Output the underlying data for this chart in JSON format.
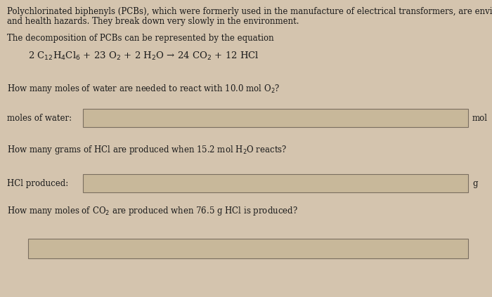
{
  "bg_color": "#d4c4ae",
  "text_color": "#1a1a1a",
  "box_fill": "#c8b89a",
  "box_edge": "#7a6e60",
  "paragraph1_line1": "Polychlorinated biphenyls (PCBs), which were formerly used in the manufacture of electrical transformers, are environmental",
  "paragraph1_line2": "and health hazards. They break down very slowly in the environment.",
  "paragraph2": "The decomposition of PCBs can be represented by the equation",
  "equation": "2 C$_{12}$H$_4$Cl$_6$ + 23 O$_2$ + 2 H$_2$O → 24 CO$_2$ + 12 HCl",
  "question1": "How many moles of water are needed to react with 10.0 mol O$_2$?",
  "label1": "moles of water:",
  "unit1": "mol",
  "question2": "How many grams of HCl are produced when 15.2 mol H$_2$O reacts?",
  "label2": "HCl produced:",
  "unit2": "g",
  "question3": "How many moles of CO$_2$ are produced when 76.5 g HCl is produced?",
  "font_size": 8.5,
  "font_size_eq": 9.5
}
